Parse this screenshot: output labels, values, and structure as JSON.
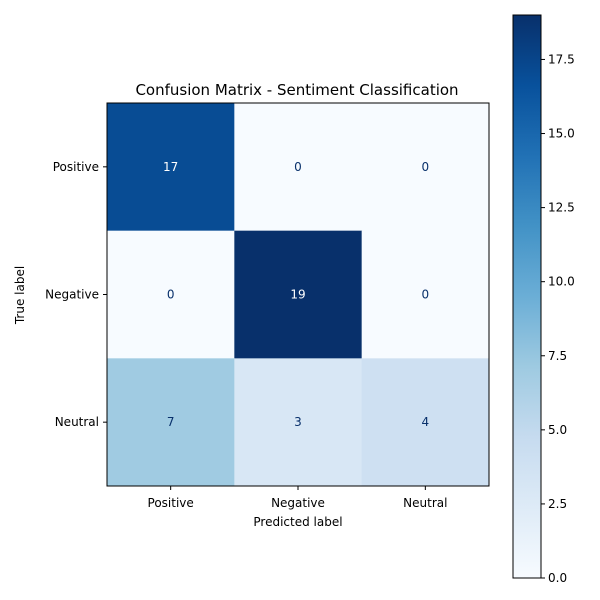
{
  "chart_data": {
    "type": "heatmap",
    "title": "Confusion Matrix - Sentiment Classification",
    "xlabel": "Predicted label",
    "ylabel": "True label",
    "x_categories": [
      "Positive",
      "Negative",
      "Neutral"
    ],
    "y_categories": [
      "Positive",
      "Negative",
      "Neutral"
    ],
    "values": [
      [
        17,
        0,
        0
      ],
      [
        0,
        19,
        0
      ],
      [
        7,
        3,
        4
      ]
    ],
    "colormap": "Blues",
    "colorbar": {
      "range": [
        0,
        19
      ],
      "ticks": [
        0.0,
        2.5,
        5.0,
        7.5,
        10.0,
        12.5,
        15.0,
        17.5
      ],
      "tick_labels": [
        "0.0",
        "2.5",
        "5.0",
        "7.5",
        "10.0",
        "12.5",
        "15.0",
        "17.5"
      ]
    },
    "grid": false
  }
}
